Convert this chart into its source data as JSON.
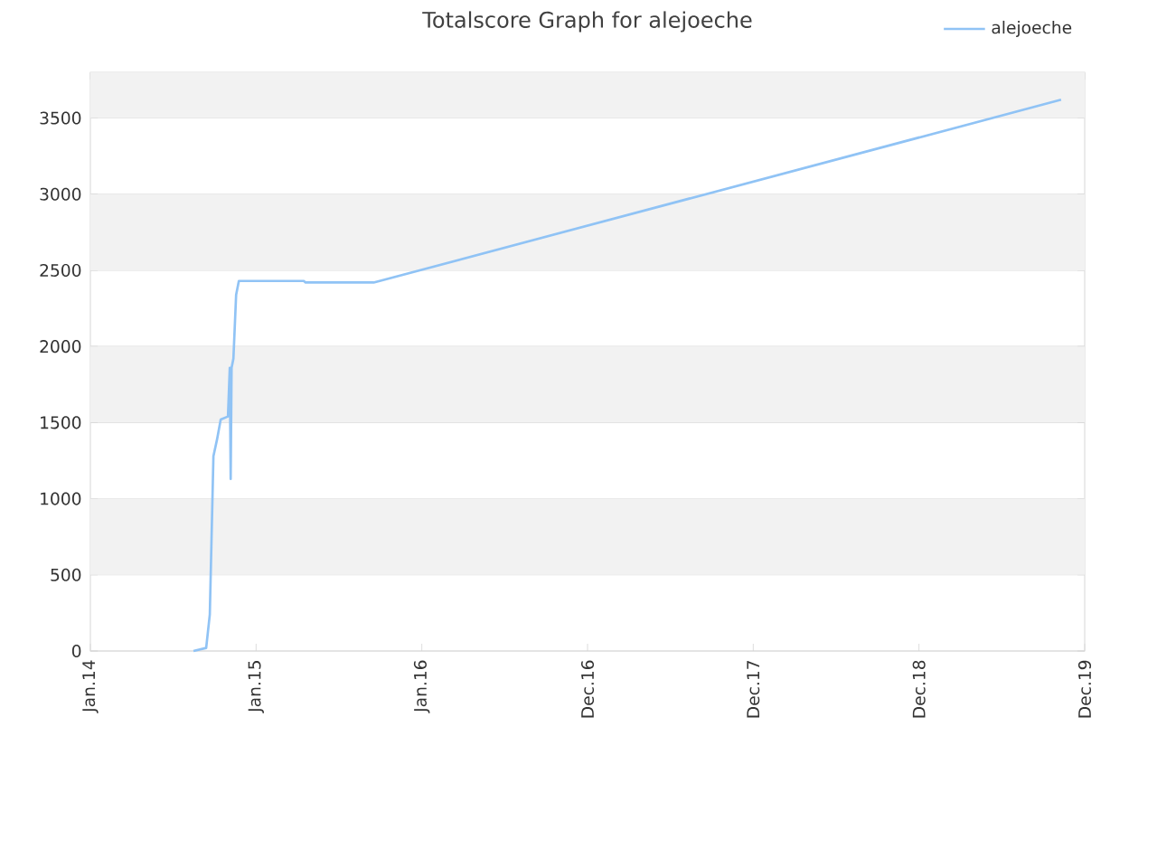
{
  "chart_data": {
    "type": "line",
    "title": "Totalscore Graph for alejoeche",
    "x": [
      "2014-08-16",
      "2014-09-13",
      "2014-09-21",
      "2014-09-29",
      "2014-10-07",
      "2014-10-15",
      "2014-10-31",
      "2014-11-04",
      "2014-11-06",
      "2014-11-08",
      "2014-11-12",
      "2014-11-18",
      "2014-11-24",
      "2015-04-16",
      "2015-04-20",
      "2015-09-17",
      "2019-11-09"
    ],
    "series": [
      {
        "name": "alejoeche",
        "color": "#90c3f5",
        "values": [
          0,
          20,
          240,
          1280,
          1390,
          1520,
          1540,
          1860,
          1130,
          1860,
          1920,
          2340,
          2430,
          2430,
          2420,
          2420,
          3620
        ]
      }
    ],
    "xlim": [
      "2014-01-01",
      "2019-12-31"
    ],
    "xticks": [
      {
        "value": "2014-01-01",
        "label": "Jan.14"
      },
      {
        "value": "2015-01-01",
        "label": "Jan.15"
      },
      {
        "value": "2016-01-01",
        "label": "Jan.16"
      },
      {
        "value": "2016-12-31",
        "label": "Dec.16"
      },
      {
        "value": "2017-12-31",
        "label": "Dec.17"
      },
      {
        "value": "2018-12-31",
        "label": "Dec.18"
      },
      {
        "value": "2019-12-31",
        "label": "Dec.19"
      }
    ],
    "ylim": [
      0,
      3800
    ],
    "yticks": [
      0,
      500,
      1000,
      1500,
      2000,
      2500,
      3000,
      3500
    ],
    "grid": "y",
    "legend": "top right",
    "marker": "none",
    "line_style": "solid"
  }
}
